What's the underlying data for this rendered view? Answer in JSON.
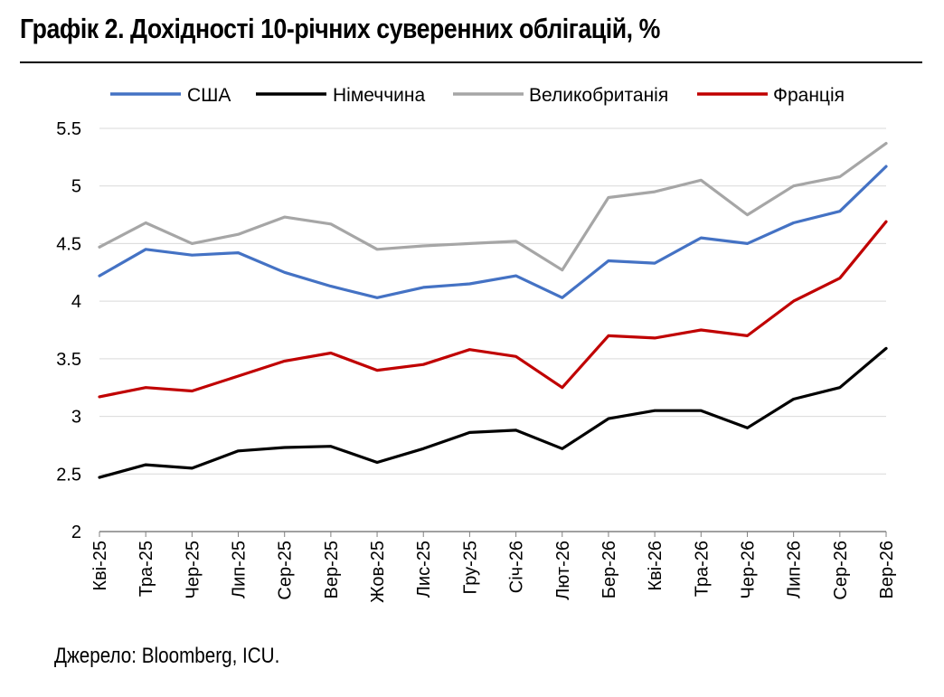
{
  "title": "Графік 2. Дохідності 10-річних суверенних облігацій, %",
  "source": "Джерело: Bloomberg, ICU.",
  "chart_data": {
    "type": "line",
    "title": "Графік 2. Дохідності 10-річних суверенних облігацій, %",
    "xlabel": "",
    "ylabel": "",
    "ylim": [
      2,
      5.5
    ],
    "yticks": [
      "2",
      "2.5",
      "3",
      "3.5",
      "4",
      "4.5",
      "5",
      "5.5"
    ],
    "x_tick_labels": [
      "Кві-25",
      "Тра-25",
      "Чер-25",
      "Лип-25",
      "Сер-25",
      "Вер-25",
      "Жов-25",
      "Лис-25",
      "Гру-25",
      "Січ-26",
      "Лют-26",
      "Бер-26",
      "Кві-26",
      "Тра-26",
      "Чер-26",
      "Лип-26",
      "Сер-26",
      "Вер-26"
    ],
    "grid": "horizontal",
    "legend": "top",
    "x": [
      "Кві-25",
      "Тра-25",
      "Чер-25",
      "Лип-25",
      "Сер-25",
      "Вер-25",
      "Жов-25",
      "Лис-25",
      "Гру-25",
      "Січ-26",
      "Лют-26",
      "Бер-26",
      "Кві-26",
      "Тра-26",
      "Чер-26",
      "Лип-26",
      "Сер-26",
      "Вер-26"
    ],
    "series": [
      {
        "name": "США",
        "color": "#4472C4",
        "values": [
          4.22,
          4.45,
          4.4,
          4.42,
          4.25,
          4.13,
          4.03,
          4.12,
          4.15,
          4.22,
          4.03,
          4.35,
          4.33,
          4.55,
          4.5,
          4.68,
          4.78,
          5.17
        ]
      },
      {
        "name": "Німеччина",
        "color": "#000000",
        "values": [
          2.47,
          2.58,
          2.55,
          2.7,
          2.73,
          2.74,
          2.6,
          2.72,
          2.86,
          2.88,
          2.72,
          2.98,
          3.05,
          3.05,
          2.9,
          3.15,
          3.25,
          3.59
        ]
      },
      {
        "name": "Великобританія",
        "color": "#A6A6A6",
        "values": [
          4.47,
          4.68,
          4.5,
          4.58,
          4.73,
          4.67,
          4.45,
          4.48,
          4.5,
          4.52,
          4.27,
          4.9,
          4.95,
          5.05,
          4.75,
          5.0,
          5.08,
          5.37
        ]
      },
      {
        "name": "Франція",
        "color": "#C00000",
        "values": [
          3.17,
          3.25,
          3.22,
          3.35,
          3.48,
          3.55,
          3.4,
          3.45,
          3.58,
          3.52,
          3.25,
          3.7,
          3.68,
          3.75,
          3.7,
          4.0,
          4.2,
          4.69
        ]
      }
    ]
  }
}
